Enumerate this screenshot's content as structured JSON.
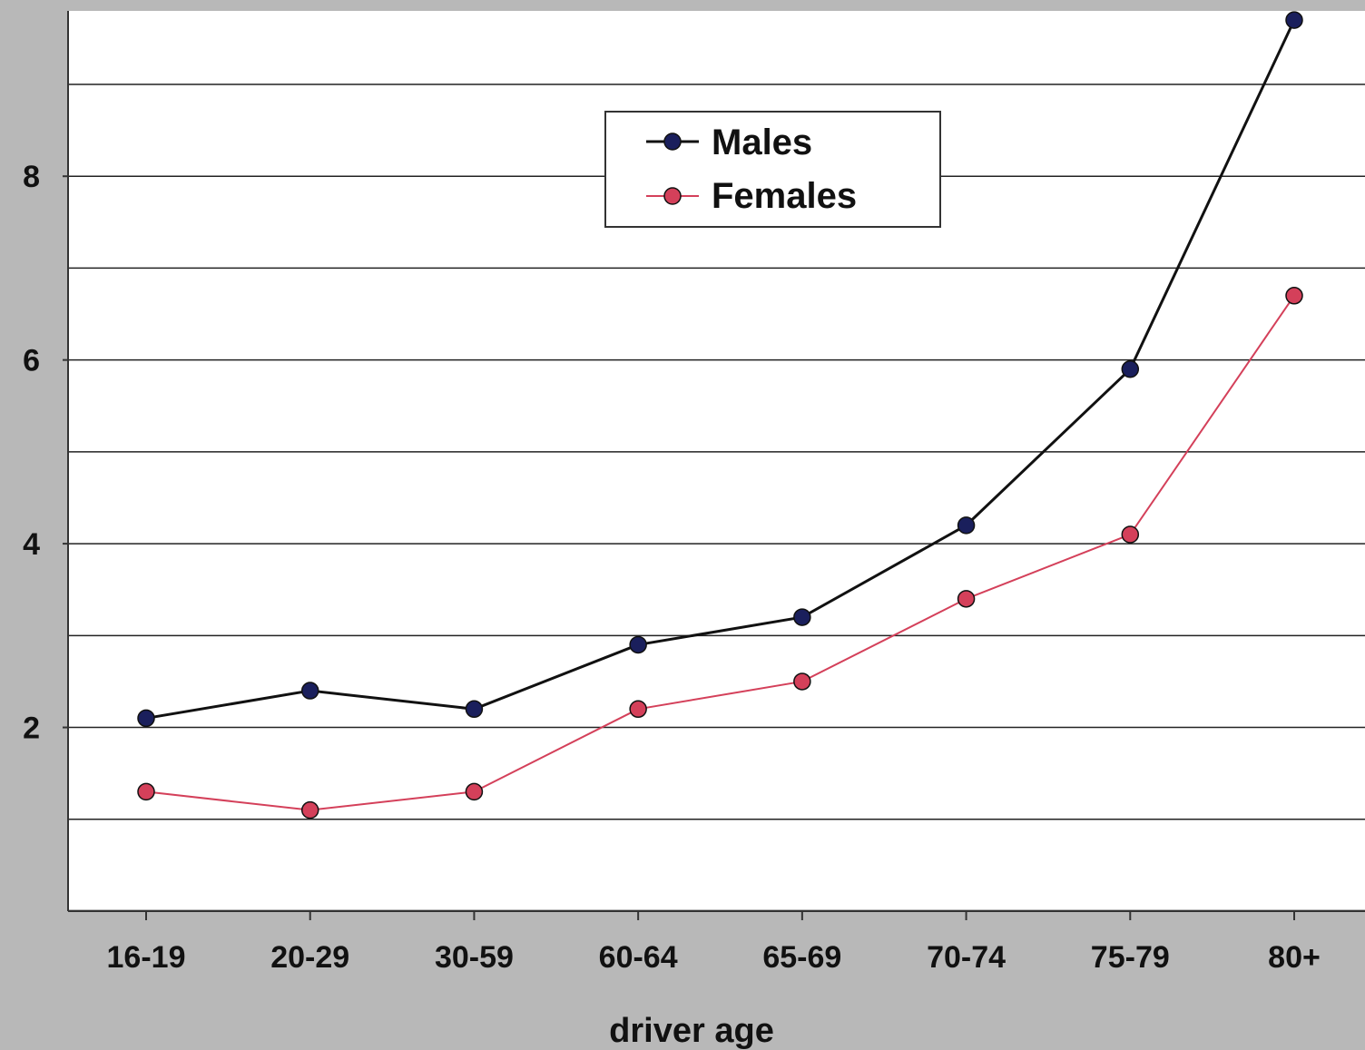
{
  "chart_data": {
    "type": "line",
    "xlabel": "driver age",
    "ylabel": "",
    "categories": [
      "16-19",
      "20-29",
      "30-59",
      "60-64",
      "65-69",
      "70-74",
      "75-79",
      "80+"
    ],
    "y_ticks": [
      2,
      4,
      6,
      8
    ],
    "ylim": [
      0,
      9.8
    ],
    "grid": "horizontal, every 1 unit",
    "legend_position": "top-center",
    "series": [
      {
        "name": "Males",
        "color": "#1a1f5c",
        "values": [
          2.1,
          2.4,
          2.2,
          2.9,
          3.2,
          4.2,
          5.9,
          9.7
        ]
      },
      {
        "name": "Females",
        "color": "#d4405a",
        "values": [
          1.3,
          1.1,
          1.3,
          2.2,
          2.5,
          3.4,
          4.1,
          6.7
        ]
      }
    ]
  }
}
